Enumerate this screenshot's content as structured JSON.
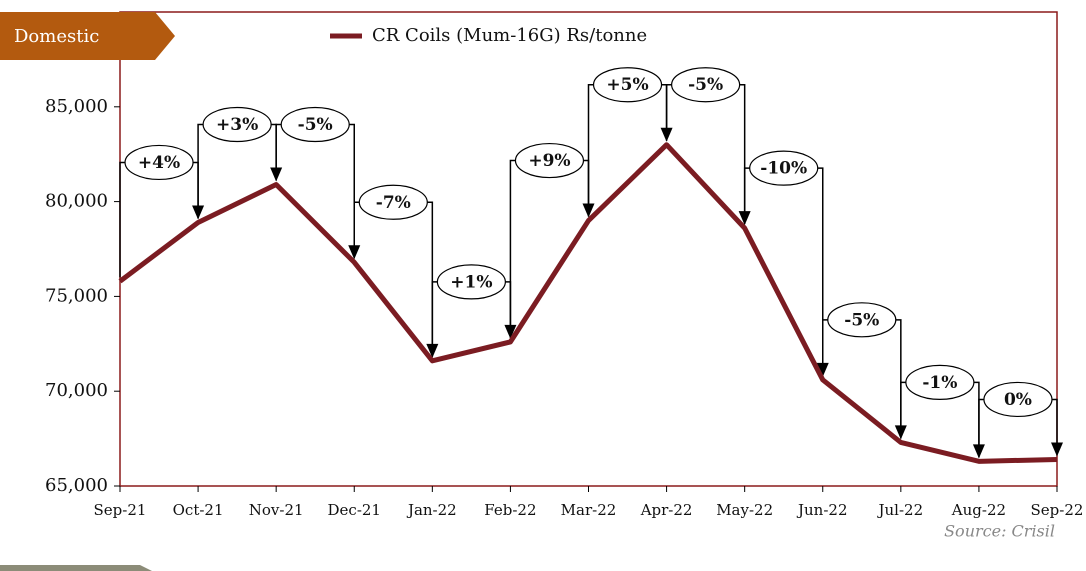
{
  "chart_data": {
    "type": "line",
    "tag": "Domestic",
    "source": "Source: Crisil",
    "categories": [
      "Sep-21",
      "Oct-21",
      "Nov-21",
      "Dec-21",
      "Jan-22",
      "Feb-22",
      "Mar-22",
      "Apr-22",
      "May-22",
      "Jun-22",
      "Jul-22",
      "Aug-22",
      "Sep-22"
    ],
    "series": [
      {
        "name": "CR Coils (Mum-16G) Rs/tonne",
        "color": "#7b1c22",
        "values": [
          75800,
          78900,
          80900,
          76800,
          71600,
          72600,
          79000,
          83000,
          78600,
          70600,
          67300,
          66300,
          66400
        ]
      }
    ],
    "annotations": [
      "+4%",
      "+3%",
      "-5%",
      "-7%",
      "+1%",
      "+9%",
      "+5%",
      "-5%",
      "-10%",
      "-5%",
      "-1%",
      "0%"
    ],
    "ylim": [
      65000,
      90000
    ],
    "yticks": [
      {
        "value": 65000,
        "label": "65,000"
      },
      {
        "value": 70000,
        "label": "70,000"
      },
      {
        "value": 75000,
        "label": "75,000"
      },
      {
        "value": 80000,
        "label": "80,000"
      },
      {
        "value": 85000,
        "label": "85,000"
      }
    ]
  }
}
